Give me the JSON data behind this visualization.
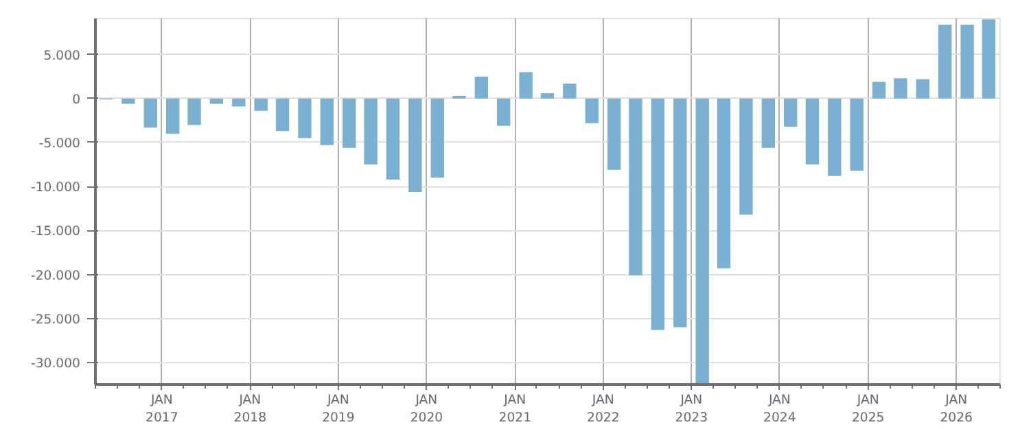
{
  "chart_data": {
    "type": "bar",
    "color": "#7ab1d3",
    "x": [
      "2016-05-15",
      "2016-08-15",
      "2016-11-15",
      "2017-02-15",
      "2017-05-15",
      "2017-08-15",
      "2017-11-15",
      "2018-02-15",
      "2018-05-15",
      "2018-08-15",
      "2018-11-15",
      "2019-02-15",
      "2019-05-15",
      "2019-08-15",
      "2019-11-15",
      "2020-02-15",
      "2020-05-15",
      "2020-08-15",
      "2020-11-15",
      "2021-02-15",
      "2021-05-15",
      "2021-08-15",
      "2021-11-15",
      "2022-02-15",
      "2022-05-15",
      "2022-08-15",
      "2022-11-15",
      "2023-02-15",
      "2023-05-15",
      "2023-08-15",
      "2023-11-15",
      "2024-02-15",
      "2024-05-15",
      "2024-08-15",
      "2024-11-15",
      "2025-02-15",
      "2025-05-15",
      "2025-08-15",
      "2025-11-15",
      "2026-02-15",
      "2026-05-15"
    ],
    "values": [
      -100,
      -600,
      -3300,
      -4000,
      -3000,
      -600,
      -900,
      -1400,
      -3700,
      -4500,
      -5300,
      -5600,
      -7500,
      -9200,
      -10600,
      -9000,
      300,
      2500,
      -3100,
      3000,
      600,
      1700,
      -2800,
      -8100,
      -20100,
      -26300,
      -26000,
      -32500,
      -19300,
      -13200,
      -5600,
      -3200,
      -7500,
      -8800,
      -8200,
      1900,
      2300,
      2200,
      8400,
      8400,
      9000
    ],
    "xlim": [
      "2016-04-01",
      "2026-07-01"
    ],
    "xticks": [
      {
        "value": "2017-01-01",
        "label": "JAN\n2017"
      },
      {
        "value": "2018-01-01",
        "label": "JAN\n2018"
      },
      {
        "value": "2019-01-01",
        "label": "JAN\n2019"
      },
      {
        "value": "2020-01-01",
        "label": "JAN\n2020"
      },
      {
        "value": "2021-01-01",
        "label": "JAN\n2021"
      },
      {
        "value": "2022-01-01",
        "label": "JAN\n2022"
      },
      {
        "value": "2023-01-01",
        "label": "JAN\n2023"
      },
      {
        "value": "2024-01-01",
        "label": "JAN\n2024"
      },
      {
        "value": "2025-01-01",
        "label": "JAN\n2025"
      },
      {
        "value": "2026-01-01",
        "label": "JAN\n2026"
      }
    ],
    "ylim": [
      -32500,
      9100
    ],
    "yticks": [
      {
        "value": -30000,
        "label": "-30.000"
      },
      {
        "value": -25000,
        "label": "-25.000"
      },
      {
        "value": -20000,
        "label": "-20.000"
      },
      {
        "value": -15000,
        "label": "-15.000"
      },
      {
        "value": -10000,
        "label": "-10.000"
      },
      {
        "value": -5000,
        "label": "-5.000"
      },
      {
        "value": 0,
        "label": "0"
      },
      {
        "value": 5000,
        "label": "5.000"
      }
    ],
    "grid": true
  }
}
